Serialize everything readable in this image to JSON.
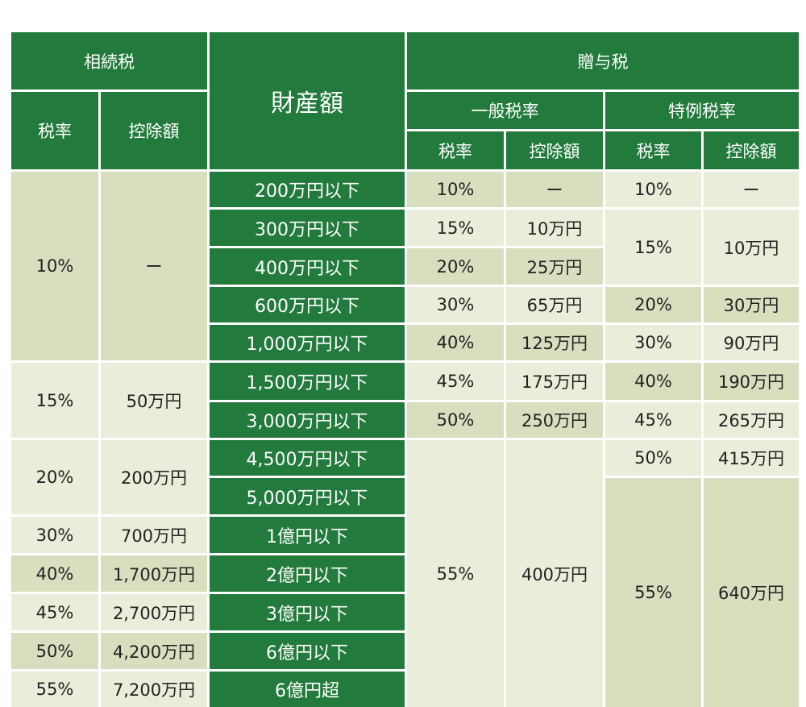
{
  "colors": {
    "header_green": "#227a3c",
    "amount_green": "#227a3c",
    "light": "#eaedda",
    "medium": "#d7dfbf",
    "text_dark": "#222222",
    "text_light": "#ffffff"
  },
  "headers": {
    "inheritance_tax": "相続税",
    "property_amount": "財産額",
    "gift_tax": "贈与税",
    "general_rate": "一般税率",
    "special_rate": "特例税率",
    "tax_rate": "税率",
    "deduction": "控除額"
  },
  "amounts": [
    "200万円以下",
    "300万円以下",
    "400万円以下",
    "600万円以下",
    "1,000万円以下",
    "1,500万円以下",
    "3,000万円以下",
    "4,500万円以下",
    "5,000万円以下",
    "1億円以下",
    "2億円以下",
    "3億円以下",
    "6億円以下",
    "6億円超"
  ],
  "inheritance": [
    {
      "rate": "10%",
      "deduction": "ー"
    },
    {
      "rate": "15%",
      "deduction": "50万円"
    },
    {
      "rate": "20%",
      "deduction": "200万円"
    },
    {
      "rate": "30%",
      "deduction": "700万円"
    },
    {
      "rate": "40%",
      "deduction": "1,700万円"
    },
    {
      "rate": "45%",
      "deduction": "2,700万円"
    },
    {
      "rate": "50%",
      "deduction": "4,200万円"
    },
    {
      "rate": "55%",
      "deduction": "7,200万円"
    }
  ],
  "gift_general": [
    {
      "rate": "10%",
      "deduction": "ー"
    },
    {
      "rate": "15%",
      "deduction": "10万円"
    },
    {
      "rate": "20%",
      "deduction": "25万円"
    },
    {
      "rate": "30%",
      "deduction": "65万円"
    },
    {
      "rate": "40%",
      "deduction": "125万円"
    },
    {
      "rate": "45%",
      "deduction": "175万円"
    },
    {
      "rate": "50%",
      "deduction": "250万円"
    },
    {
      "rate": "55%",
      "deduction": "400万円"
    }
  ],
  "gift_special": [
    {
      "rate": "10%",
      "deduction": "ー"
    },
    {
      "rate": "15%",
      "deduction": "10万円"
    },
    {
      "rate": "20%",
      "deduction": "30万円"
    },
    {
      "rate": "30%",
      "deduction": "90万円"
    },
    {
      "rate": "40%",
      "deduction": "190万円"
    },
    {
      "rate": "45%",
      "deduction": "265万円"
    },
    {
      "rate": "50%",
      "deduction": "415万円"
    },
    {
      "rate": "55%",
      "deduction": "640万円"
    }
  ]
}
